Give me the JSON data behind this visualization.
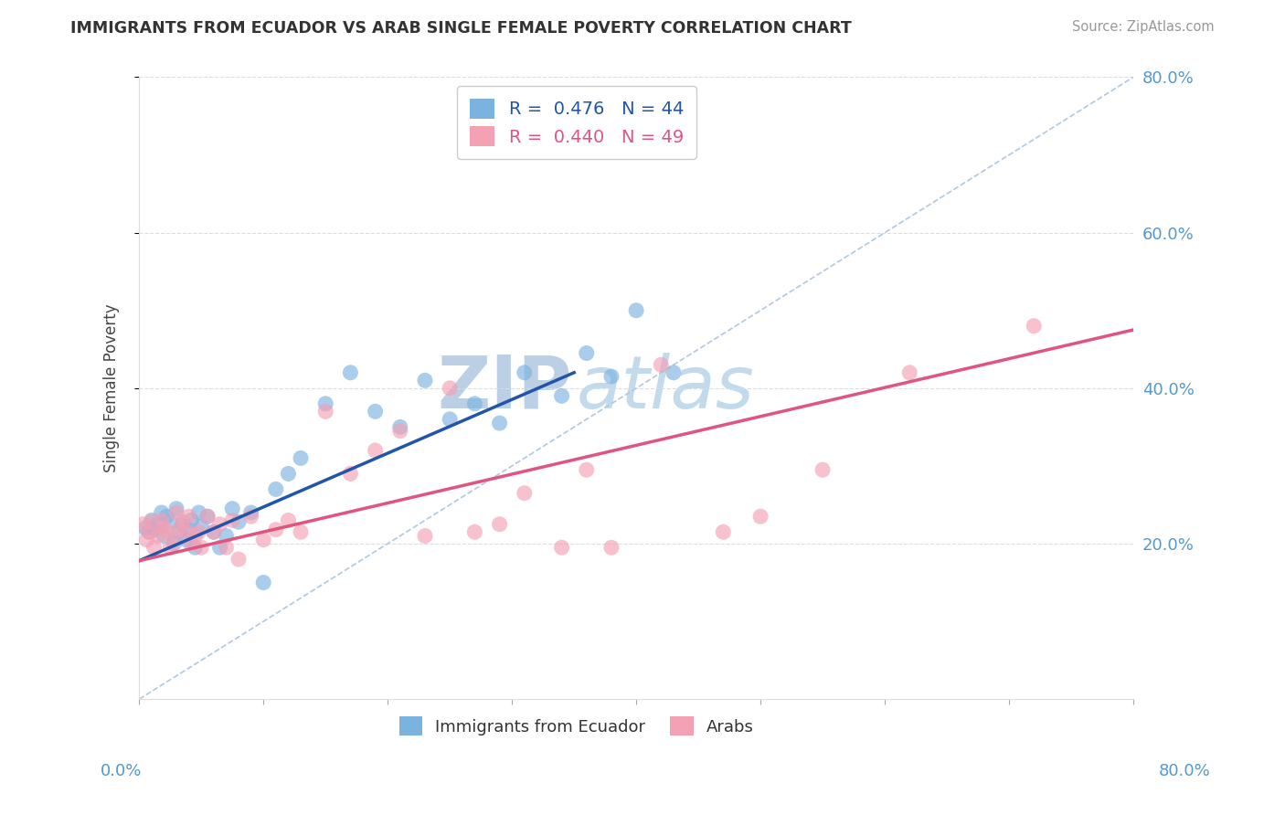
{
  "title": "IMMIGRANTS FROM ECUADOR VS ARAB SINGLE FEMALE POVERTY CORRELATION CHART",
  "source": "Source: ZipAtlas.com",
  "ylabel": "Single Female Poverty",
  "legend_ecuador": "R =  0.476   N = 44",
  "legend_arabs": "R =  0.440   N = 49",
  "legend_label_ecuador": "Immigrants from Ecuador",
  "legend_label_arabs": "Arabs",
  "xlim": [
    0,
    0.8
  ],
  "ylim": [
    0,
    0.8
  ],
  "yticks": [
    0.2,
    0.4,
    0.6,
    0.8
  ],
  "color_ecuador": "#7BB3E0",
  "color_arabs": "#F4A0B5",
  "color_line_ecuador": "#2255AA",
  "color_line_arabs": "#E05580",
  "watermark_color": "#C8DCF0",
  "ecuador_x": [
    0.005,
    0.008,
    0.01,
    0.012,
    0.015,
    0.018,
    0.02,
    0.022,
    0.025,
    0.028,
    0.03,
    0.032,
    0.035,
    0.038,
    0.04,
    0.042,
    0.045,
    0.048,
    0.05,
    0.055,
    0.06,
    0.065,
    0.07,
    0.075,
    0.08,
    0.09,
    0.1,
    0.11,
    0.12,
    0.13,
    0.15,
    0.17,
    0.19,
    0.21,
    0.23,
    0.25,
    0.27,
    0.29,
    0.31,
    0.34,
    0.36,
    0.38,
    0.4,
    0.43
  ],
  "ecuador_y": [
    0.22,
    0.215,
    0.23,
    0.218,
    0.225,
    0.24,
    0.21,
    0.235,
    0.228,
    0.2,
    0.245,
    0.215,
    0.225,
    0.205,
    0.218,
    0.23,
    0.195,
    0.24,
    0.222,
    0.235,
    0.215,
    0.195,
    0.21,
    0.245,
    0.228,
    0.24,
    0.15,
    0.27,
    0.29,
    0.31,
    0.38,
    0.42,
    0.37,
    0.35,
    0.41,
    0.36,
    0.38,
    0.355,
    0.42,
    0.39,
    0.445,
    0.415,
    0.5,
    0.42
  ],
  "arabs_x": [
    0.003,
    0.006,
    0.008,
    0.01,
    0.012,
    0.015,
    0.018,
    0.02,
    0.022,
    0.025,
    0.028,
    0.03,
    0.032,
    0.035,
    0.038,
    0.04,
    0.042,
    0.045,
    0.048,
    0.05,
    0.055,
    0.06,
    0.065,
    0.07,
    0.075,
    0.08,
    0.09,
    0.1,
    0.11,
    0.12,
    0.13,
    0.15,
    0.17,
    0.19,
    0.21,
    0.23,
    0.25,
    0.27,
    0.29,
    0.31,
    0.34,
    0.36,
    0.38,
    0.42,
    0.47,
    0.5,
    0.55,
    0.62,
    0.72
  ],
  "arabs_y": [
    0.225,
    0.205,
    0.215,
    0.228,
    0.195,
    0.21,
    0.23,
    0.22,
    0.215,
    0.195,
    0.205,
    0.24,
    0.218,
    0.228,
    0.215,
    0.235,
    0.2,
    0.21,
    0.215,
    0.195,
    0.235,
    0.215,
    0.225,
    0.195,
    0.23,
    0.18,
    0.235,
    0.205,
    0.218,
    0.23,
    0.215,
    0.37,
    0.29,
    0.32,
    0.345,
    0.21,
    0.4,
    0.215,
    0.225,
    0.265,
    0.195,
    0.295,
    0.195,
    0.43,
    0.215,
    0.235,
    0.295,
    0.42,
    0.48
  ],
  "ec_line_x": [
    0.0,
    0.35
  ],
  "ec_line_y": [
    0.178,
    0.42
  ],
  "ar_line_x": [
    0.0,
    0.8
  ],
  "ar_line_y": [
    0.178,
    0.475
  ]
}
